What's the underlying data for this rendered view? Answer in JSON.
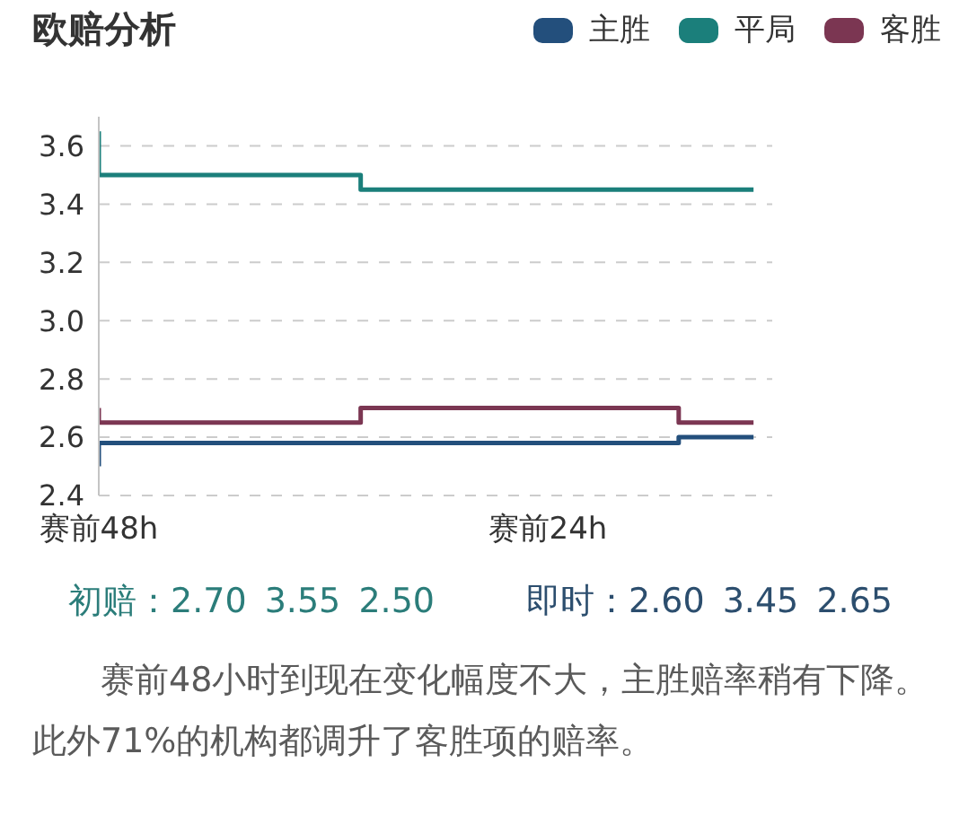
{
  "chart_data": {
    "type": "step",
    "title": "欧赔分析",
    "legend": "top right",
    "grid": "y",
    "line_style": "solid",
    "categories": [
      "赛前48h",
      null,
      null,
      null,
      null,
      null,
      null,
      null,
      null,
      null,
      null,
      null,
      null,
      null,
      null,
      null,
      null,
      null,
      null,
      null,
      null,
      null,
      null,
      null,
      "赛前24h",
      null,
      null,
      null,
      null,
      null,
      null,
      null,
      null,
      null,
      null,
      null,
      null
    ],
    "ylim": [
      2.4,
      3.7
    ],
    "yticks": [
      2.4,
      2.6,
      2.8,
      {
        "value": 3,
        "label": "3.0"
      },
      3.2,
      3.4,
      3.6
    ],
    "series": [
      {
        "name": "主胜",
        "color": "#234f7c",
        "values": [
          2.5,
          2.58,
          2.58,
          2.58,
          2.58,
          2.58,
          2.58,
          2.58,
          2.58,
          2.58,
          2.58,
          2.58,
          2.58,
          2.58,
          2.58,
          2.58,
          2.58,
          2.58,
          2.58,
          2.58,
          2.58,
          2.58,
          2.58,
          2.58,
          2.58,
          2.58,
          2.58,
          2.58,
          2.58,
          2.58,
          2.58,
          2.58,
          2.6,
          2.6,
          2.6,
          2.6,
          null
        ]
      },
      {
        "name": "平局",
        "color": "#1b7f7b",
        "values": [
          3.65,
          3.5,
          3.5,
          3.5,
          3.5,
          3.5,
          3.5,
          3.5,
          3.5,
          3.5,
          3.5,
          3.5,
          3.5,
          3.5,
          3.5,
          3.45,
          3.45,
          3.45,
          3.45,
          3.45,
          3.45,
          3.45,
          3.45,
          3.45,
          3.45,
          3.45,
          3.45,
          3.45,
          3.45,
          3.45,
          3.45,
          3.45,
          3.45,
          3.45,
          3.45,
          3.45,
          null
        ]
      },
      {
        "name": "客胜",
        "color": "#7b3652",
        "values": [
          2.7,
          2.65,
          2.65,
          2.65,
          2.65,
          2.65,
          2.65,
          2.65,
          2.65,
          2.65,
          2.65,
          2.65,
          2.65,
          2.65,
          2.65,
          2.7,
          2.7,
          2.7,
          2.7,
          2.7,
          2.7,
          2.7,
          2.7,
          2.7,
          2.7,
          2.7,
          2.7,
          2.7,
          2.7,
          2.7,
          2.7,
          2.7,
          2.65,
          2.65,
          2.65,
          2.65,
          null
        ]
      }
    ],
    "annotations": [
      "初赔：2.70 3.55 2.50",
      "即时：2.60 3.45 2.65",
      "赛前48小时到现在变化幅度不大，主胜赔率稍有下降。此外71%的机构都调升了客胜项的赔率。"
    ]
  }
}
